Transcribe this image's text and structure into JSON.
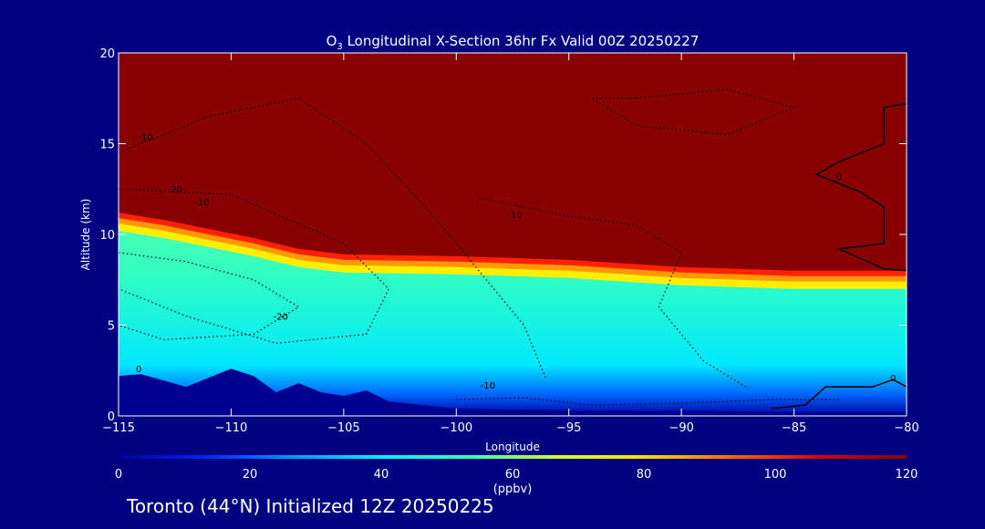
{
  "chart_data": {
    "type": "heatmap",
    "title_prefix": "O",
    "title_subscript": "3",
    "title_rest": " Longitudinal X-Section 36hr  Fx Valid 00Z 20250227",
    "xlabel": "Longitude",
    "ylabel": "Altitude (km)",
    "xlim": [
      -115,
      -80
    ],
    "ylim": [
      0,
      20
    ],
    "x_ticks": [
      "-115",
      "-110",
      "-105",
      "-100",
      "-95",
      "-90",
      "-85",
      "-80"
    ],
    "y_ticks": [
      "0",
      "5",
      "10",
      "15",
      "20"
    ],
    "colorbar": {
      "range": [
        0,
        120
      ],
      "ticks": [
        "0",
        "20",
        "40",
        "60",
        "80",
        "100",
        "120"
      ],
      "units": "(ppbv)",
      "colors": [
        "#000090",
        "#0022ff",
        "#0099ff",
        "#00eeff",
        "#33ffb0",
        "#ccff33",
        "#ffdd00",
        "#ff6600",
        "#dd0000",
        "#880000"
      ]
    },
    "tropopause_km": [
      [
        -115,
        11.2
      ],
      [
        -113,
        10.8
      ],
      [
        -111,
        10.3
      ],
      [
        -109,
        9.8
      ],
      [
        -107,
        9.2
      ],
      [
        -105,
        8.9
      ],
      [
        -100,
        8.8
      ],
      [
        -95,
        8.6
      ],
      [
        -90,
        8.2
      ],
      [
        -85,
        8.0
      ],
      [
        -80,
        8.0
      ]
    ],
    "terrain_km": [
      [
        -115,
        2.2
      ],
      [
        -114,
        2.3
      ],
      [
        -112,
        1.6
      ],
      [
        -110,
        2.6
      ],
      [
        -109,
        2.2
      ],
      [
        -108,
        1.3
      ],
      [
        -107,
        1.8
      ],
      [
        -106,
        1.3
      ],
      [
        -105,
        1.1
      ],
      [
        -104,
        1.4
      ],
      [
        -103,
        0.8
      ],
      [
        -100,
        0.4
      ],
      [
        -95,
        0.3
      ],
      [
        -90,
        0.3
      ],
      [
        -85,
        0.2
      ],
      [
        -80,
        0.2
      ]
    ],
    "contour_labels": [
      {
        "text": "-10",
        "lon": -113.8,
        "alt": 15.2
      },
      {
        "text": "-20",
        "lon": -112.5,
        "alt": 12.3
      },
      {
        "text": "-10",
        "lon": -111.3,
        "alt": 11.6
      },
      {
        "text": "-10",
        "lon": -97.4,
        "alt": 10.9
      },
      {
        "text": "-20",
        "lon": -107.8,
        "alt": 5.3
      },
      {
        "text": "-10",
        "lon": -98.6,
        "alt": 1.5
      },
      {
        "text": "0",
        "lon": -114.1,
        "alt": 2.4
      },
      {
        "text": "0",
        "lon": -83.0,
        "alt": 13.0
      },
      {
        "text": "0",
        "lon": -80.6,
        "alt": 1.9
      }
    ],
    "footer": "Toronto (44°N) Initialized 12Z 20250225"
  }
}
